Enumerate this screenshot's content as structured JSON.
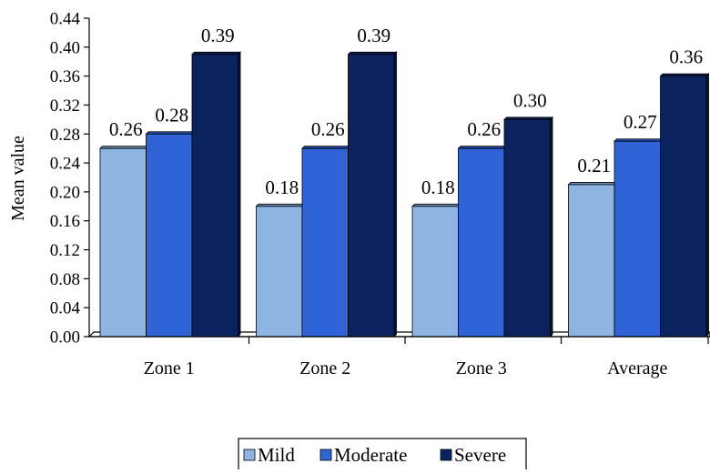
{
  "chart_data": {
    "type": "bar",
    "title": "",
    "xlabel": "",
    "ylabel": "Mean value",
    "ylim": [
      0,
      0.44
    ],
    "yticks": [
      "0.00",
      "0.04",
      "0.08",
      "0.12",
      "0.16",
      "0.20",
      "0.24",
      "0.28",
      "0.32",
      "0.36",
      "0.40",
      "0.44"
    ],
    "categories": [
      "Zone 1",
      "Zone 2",
      "Zone 3",
      "Average"
    ],
    "series": [
      {
        "name": "Mild",
        "values": [
          0.26,
          0.18,
          0.18,
          0.21
        ],
        "labels": [
          "0.26",
          "0.18",
          "0.18",
          "0.21"
        ],
        "color": "#8DB4E2"
      },
      {
        "name": "Moderate",
        "values": [
          0.28,
          0.26,
          0.26,
          0.27
        ],
        "labels": [
          "0.28",
          "0.26",
          "0.26",
          "0.27"
        ],
        "color": "#2F63D6"
      },
      {
        "name": "Severe",
        "values": [
          0.39,
          0.39,
          0.3,
          0.36
        ],
        "labels": [
          "0.39",
          "0.39",
          "0.30",
          "0.36"
        ],
        "color": "#0B2460"
      }
    ],
    "grid": false,
    "legend_position": "bottom"
  }
}
